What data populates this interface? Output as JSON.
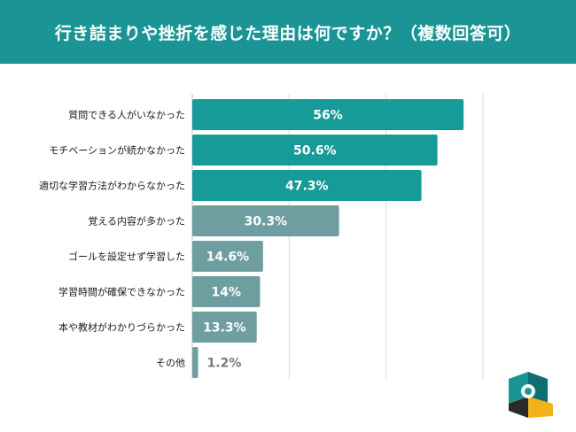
{
  "header": {
    "title": "行き詰まりや挫折を感じた理由は何ですか？（複数回答可）"
  },
  "colors": {
    "header": "#1a9495",
    "bar_top": "#169b99",
    "bar_other": "#6f9ea0",
    "grid": "#d9d9d9",
    "label_text": "#1a1a1a",
    "bar_text": "#ffffff",
    "outside_text": "#7a7a7a"
  },
  "chart_data": {
    "type": "bar",
    "orientation": "horizontal",
    "title": "行き詰まりや挫折を感じた理由は何ですか？（複数回答可）",
    "categories": [
      "質問できる人がいなかった",
      "モチベーションが続かなかった",
      "適切な学習方法がわからなかった",
      "覚える内容が多かった",
      "ゴールを設定せず学習した",
      "学習時間が確保できなかった",
      "本や教材がわかりづらかった",
      "その他"
    ],
    "values": [
      56,
      50.6,
      47.3,
      30.3,
      14.6,
      14,
      13.3,
      1.2
    ],
    "data_labels": [
      "56%",
      "50.6%",
      "47.3%",
      "30.3%",
      "14.6%",
      "14%",
      "13.3%",
      "1.2%"
    ],
    "xlim": [
      0,
      60
    ],
    "grid": true,
    "legend": "none"
  }
}
